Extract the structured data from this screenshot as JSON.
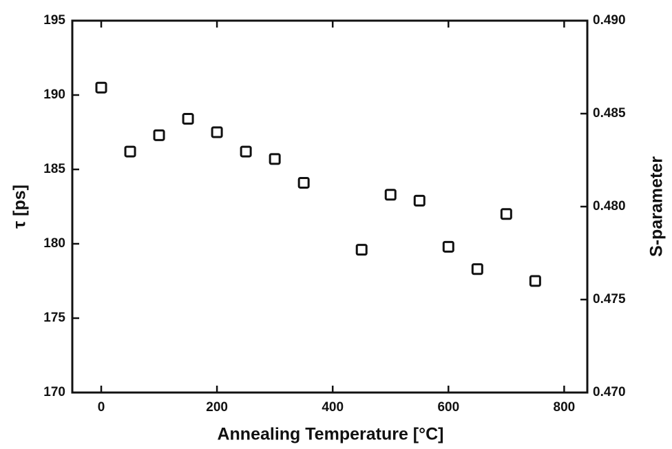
{
  "chart_data": {
    "type": "scatter",
    "xlabel": "Annealing Temperature [°C]",
    "ylabel": "τ [ps]",
    "y2label": "S-parameter",
    "x": [
      0,
      50,
      100,
      150,
      200,
      250,
      300,
      350,
      450,
      500,
      550,
      600,
      650,
      700,
      750
    ],
    "values": [
      190.5,
      186.2,
      187.3,
      188.4,
      187.5,
      186.2,
      185.7,
      184.1,
      179.6,
      183.3,
      182.9,
      179.8,
      178.3,
      182.0,
      177.5
    ],
    "color": "#111111",
    "xlim": [
      -50,
      840
    ],
    "xticks": [
      0,
      200,
      400,
      600,
      800
    ],
    "ylim": [
      170,
      195
    ],
    "yticks": [
      170,
      175,
      180,
      185,
      190,
      195
    ],
    "y2lim": [
      0.47,
      0.49
    ],
    "y2ticks": [
      {
        "value": 0.47,
        "label": "0.470"
      },
      0.475,
      {
        "value": 0.48,
        "label": "0.480"
      },
      0.485,
      {
        "value": 0.49,
        "label": "0.490"
      }
    ],
    "grid": false
  }
}
